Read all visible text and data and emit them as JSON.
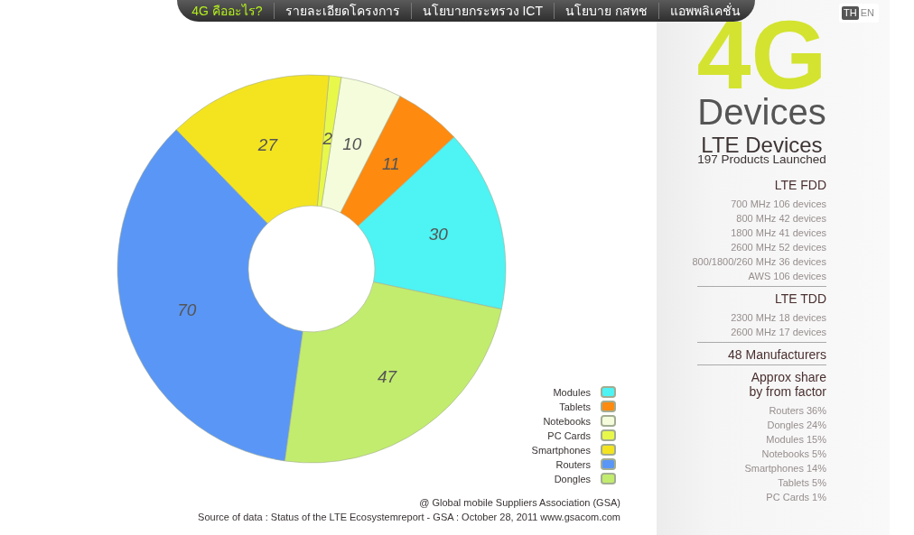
{
  "chart_data": [
    {
      "type": "other",
      "annotations": [
        "4G คืออะไร?",
        "รายละเอียดโครงการ",
        "นโยบายกระทรวง ICT",
        "นโยบาย กสทช",
        "แอพพลิเคชั่น"
      ]
    },
    {
      "type": "other",
      "annotations": [
        "TH",
        "EN"
      ]
    },
    {
      "type": "donut",
      "categories": [
        "Modules",
        "Tablets",
        "Notebooks",
        "PC Cards",
        "Smartphones",
        "Routers",
        "Dongles"
      ],
      "values": [
        30,
        11,
        10,
        2,
        27,
        70,
        47
      ],
      "colors": [
        "#4ef3f3",
        "#ff8a10",
        "#f4fcdc",
        "#e8f84a",
        "#f4e420",
        "#5a96f5",
        "#c2ec6e"
      ],
      "data_labels": true,
      "legend": "bottom right",
      "annotations": [
        "@ Global mobile Suppliers Association (GSA)",
        "Source of data : Status of the LTE Ecosystemreport - GSA : October 28, 2011 www.gsacom.com"
      ]
    },
    {
      "type": "other",
      "title": "4G",
      "subtitle": "Devices",
      "annotations": [
        "LTE Devices",
        "197 Products Launched"
      ]
    },
    {
      "type": "other",
      "title": "LTE FDD",
      "annotations": [
        "700 MHz 106 devices",
        "800 MHz 42 devices",
        "1800 MHz 41 devices",
        "2600 MHz 52 devices",
        "800/1800/260 MHz 36 devices",
        "AWS 106 devices"
      ]
    },
    {
      "type": "other",
      "title": "LTE TDD",
      "annotations": [
        "2300 MHz 18 devices",
        "2600 MHz 17 devices"
      ]
    },
    {
      "type": "other",
      "title": "48 Manufacturers"
    },
    {
      "type": "other",
      "title": "Approx share by from factor",
      "annotations": [
        "Routers 36%",
        "Dongles 24%",
        "Modules 15%",
        "Notebooks 5%",
        "Smartphones 14%",
        "Tablets 5%",
        "PC Cards 1%"
      ]
    }
  ]
}
